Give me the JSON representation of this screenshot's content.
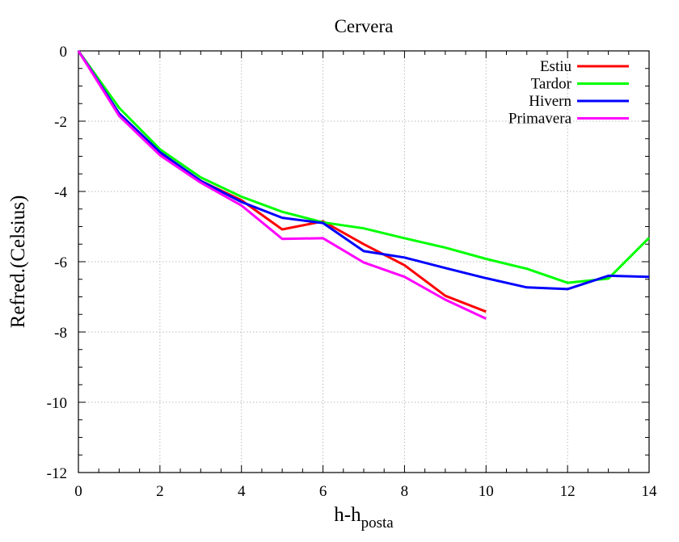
{
  "chart_data": {
    "type": "line",
    "title": "Cervera",
    "xlabel": "h-h",
    "xlabel_sub": "posta",
    "ylabel": "Refred.(Celsius)",
    "xlim": [
      0,
      14
    ],
    "ylim": [
      -12,
      0
    ],
    "xticks": [
      0,
      2,
      4,
      6,
      8,
      10,
      12,
      14
    ],
    "yticks": [
      0,
      -2,
      -4,
      -6,
      -8,
      -10,
      -12
    ],
    "grid": true,
    "legend_position": "top-right",
    "series": [
      {
        "name": "Estiu",
        "color": "#ff0000",
        "x": [
          0,
          1,
          2,
          3,
          4,
          5,
          6,
          7,
          8,
          9,
          10
        ],
        "y": [
          0,
          -1.8,
          -2.9,
          -3.7,
          -4.25,
          -5.08,
          -4.85,
          -5.5,
          -6.1,
          -6.97,
          -7.42
        ]
      },
      {
        "name": "Tardor",
        "color": "#00ff00",
        "x": [
          0,
          1,
          2,
          3,
          4,
          5,
          6,
          7,
          8,
          9,
          10,
          11,
          12,
          13,
          14
        ],
        "y": [
          0,
          -1.62,
          -2.8,
          -3.6,
          -4.15,
          -4.58,
          -4.88,
          -5.05,
          -5.33,
          -5.6,
          -5.92,
          -6.2,
          -6.6,
          -6.48,
          -5.32
        ]
      },
      {
        "name": "Hivern",
        "color": "#0000ff",
        "x": [
          0,
          1,
          2,
          3,
          4,
          5,
          6,
          7,
          8,
          9,
          10,
          11,
          12,
          13,
          14
        ],
        "y": [
          0,
          -1.78,
          -2.88,
          -3.7,
          -4.3,
          -4.75,
          -4.9,
          -5.7,
          -5.88,
          -6.18,
          -6.47,
          -6.73,
          -6.78,
          -6.4,
          -6.43
        ]
      },
      {
        "name": "Primavera",
        "color": "#ff00ff",
        "x": [
          0,
          1,
          2,
          3,
          4,
          5,
          6,
          7,
          8,
          9,
          10
        ],
        "y": [
          0,
          -1.85,
          -2.97,
          -3.75,
          -4.4,
          -5.35,
          -5.33,
          -6.02,
          -6.43,
          -7.08,
          -7.62
        ]
      }
    ]
  }
}
